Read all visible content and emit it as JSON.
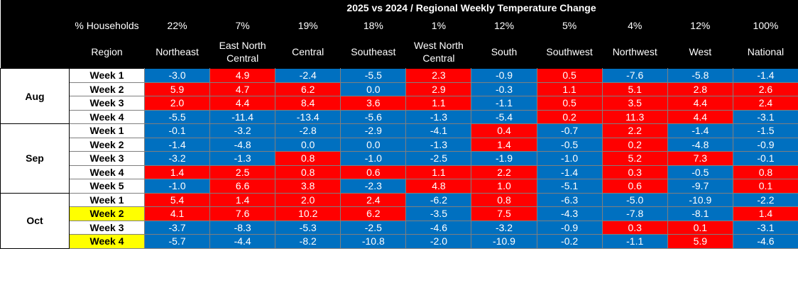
{
  "header": {
    "title": "2025 vs 2024 / Regional Weekly Temperature Change",
    "households_label": "% Households",
    "region_label": "Region",
    "households": [
      "22%",
      "7%",
      "19%",
      "18%",
      "1%",
      "12%",
      "5%",
      "4%",
      "12%",
      "100%"
    ],
    "regions": [
      "Northeast",
      "East North Central",
      "Central",
      "Southeast",
      "West North Central",
      "South",
      "Southwest",
      "Northwest",
      "West",
      "National"
    ]
  },
  "months": [
    {
      "label": "Aug",
      "rows": [
        {
          "week": "Week 1",
          "highlight": false,
          "values": [
            "-3.0",
            "4.9",
            "-2.4",
            "-5.5",
            "2.3",
            "-0.9",
            "0.5",
            "-7.6",
            "-5.8",
            "-1.4"
          ]
        },
        {
          "week": "Week 2",
          "highlight": false,
          "values": [
            "5.9",
            "4.7",
            "6.2",
            "0.0",
            "2.9",
            "-0.3",
            "1.1",
            "5.1",
            "2.8",
            "2.6"
          ]
        },
        {
          "week": "Week 3",
          "highlight": false,
          "values": [
            "2.0",
            "4.4",
            "8.4",
            "3.6",
            "1.1",
            "-1.1",
            "0.5",
            "3.5",
            "4.4",
            "2.4"
          ]
        },
        {
          "week": "Week 4",
          "highlight": false,
          "values": [
            "-5.5",
            "-11.4",
            "-13.4",
            "-5.6",
            "-1.3",
            "-5.4",
            "0.2",
            "11.3",
            "4.4",
            "-3.1"
          ]
        }
      ]
    },
    {
      "label": "Sep",
      "rows": [
        {
          "week": "Week 1",
          "highlight": false,
          "values": [
            "-0.1",
            "-3.2",
            "-2.8",
            "-2.9",
            "-4.1",
            "0.4",
            "-0.7",
            "2.2",
            "-1.4",
            "-1.5"
          ]
        },
        {
          "week": "Week 2",
          "highlight": false,
          "values": [
            "-1.4",
            "-4.8",
            "0.0",
            "0.0",
            "-1.3",
            "1.4",
            "-0.5",
            "0.2",
            "-4.8",
            "-0.9"
          ]
        },
        {
          "week": "Week 3",
          "highlight": false,
          "values": [
            "-3.2",
            "-1.3",
            "0.8",
            "-1.0",
            "-2.5",
            "-1.9",
            "-1.0",
            "5.2",
            "7.3",
            "-0.1"
          ]
        },
        {
          "week": "Week 4",
          "highlight": false,
          "values": [
            "1.4",
            "2.5",
            "0.8",
            "0.6",
            "1.1",
            "2.2",
            "-1.4",
            "0.3",
            "-0.5",
            "0.8"
          ]
        },
        {
          "week": "Week 5",
          "highlight": false,
          "values": [
            "-1.0",
            "6.6",
            "3.8",
            "-2.3",
            "4.8",
            "1.0",
            "-5.1",
            "0.6",
            "-9.7",
            "0.1"
          ]
        }
      ]
    },
    {
      "label": "Oct",
      "rows": [
        {
          "week": "Week 1",
          "highlight": false,
          "values": [
            "5.4",
            "1.4",
            "2.0",
            "2.4",
            "-6.2",
            "0.8",
            "-6.3",
            "-5.0",
            "-10.9",
            "-2.2"
          ]
        },
        {
          "week": "Week 2",
          "highlight": true,
          "values": [
            "4.1",
            "7.6",
            "10.2",
            "6.2",
            "-3.5",
            "7.5",
            "-4.3",
            "-7.8",
            "-8.1",
            "1.4"
          ]
        },
        {
          "week": "Week 3",
          "highlight": false,
          "values": [
            "-3.7",
            "-8.3",
            "-5.3",
            "-2.5",
            "-4.6",
            "-3.2",
            "-0.9",
            "0.3",
            "0.1",
            "-3.1"
          ]
        },
        {
          "week": "Week 4",
          "highlight": true,
          "values": [
            "-5.7",
            "-4.4",
            "-8.2",
            "-10.8",
            "-2.0",
            "-10.9",
            "-0.2",
            "-1.1",
            "5.9",
            "-4.6"
          ]
        }
      ]
    }
  ]
}
